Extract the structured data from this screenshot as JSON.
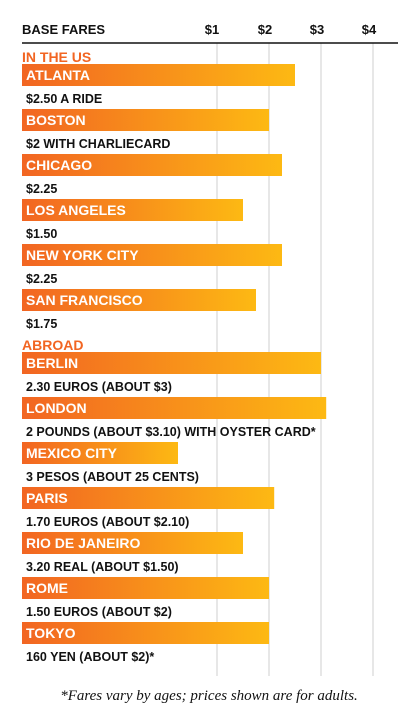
{
  "chart_data": {
    "type": "bar",
    "orientation": "horizontal",
    "title": "BASE FARES",
    "xlim": [
      0,
      4
    ],
    "ticks": [
      "$1",
      "$2",
      "$3",
      "$4"
    ],
    "grid": true,
    "bar_gradient": [
      "#f26522",
      "#fdb913"
    ],
    "label_color": "#ffffff",
    "section_color": "#f26522",
    "groups": [
      {
        "name": "IN THE US",
        "items": [
          {
            "city": "ATLANTA",
            "value": 2.5,
            "note": "$2.50 A RIDE"
          },
          {
            "city": "BOSTON",
            "value": 2.0,
            "note": "$2 WITH CHARLIECARD"
          },
          {
            "city": "CHICAGO",
            "value": 2.25,
            "note": "$2.25"
          },
          {
            "city": "LOS ANGELES",
            "value": 1.5,
            "note": "$1.50"
          },
          {
            "city": "NEW YORK CITY",
            "value": 2.25,
            "note": "$2.25"
          },
          {
            "city": "SAN FRANCISCO",
            "value": 1.75,
            "note": "$1.75"
          }
        ]
      },
      {
        "name": "ABROAD",
        "items": [
          {
            "city": "BERLIN",
            "value": 3.0,
            "note": "2.30 EUROS (ABOUT $3)"
          },
          {
            "city": "LONDON",
            "value": 3.1,
            "note": "2 POUNDS (ABOUT $3.10) WITH OYSTER CARD*"
          },
          {
            "city": "MEXICO CITY",
            "value": 0.25,
            "note": "3 PESOS (ABOUT 25 CENTS)"
          },
          {
            "city": "PARIS",
            "value": 2.1,
            "note": "1.70 EUROS (ABOUT $2.10)"
          },
          {
            "city": "RIO DE JANEIRO",
            "value": 1.5,
            "note": "3.20 REAL (ABOUT $1.50)"
          },
          {
            "city": "ROME",
            "value": 2.0,
            "note": "1.50 EUROS (ABOUT $2)"
          },
          {
            "city": "TOKYO",
            "value": 2.0,
            "note": "160 YEN (ABOUT $2)*"
          }
        ]
      }
    ],
    "footnote": "*Fares vary by ages; prices shown are for adults."
  }
}
